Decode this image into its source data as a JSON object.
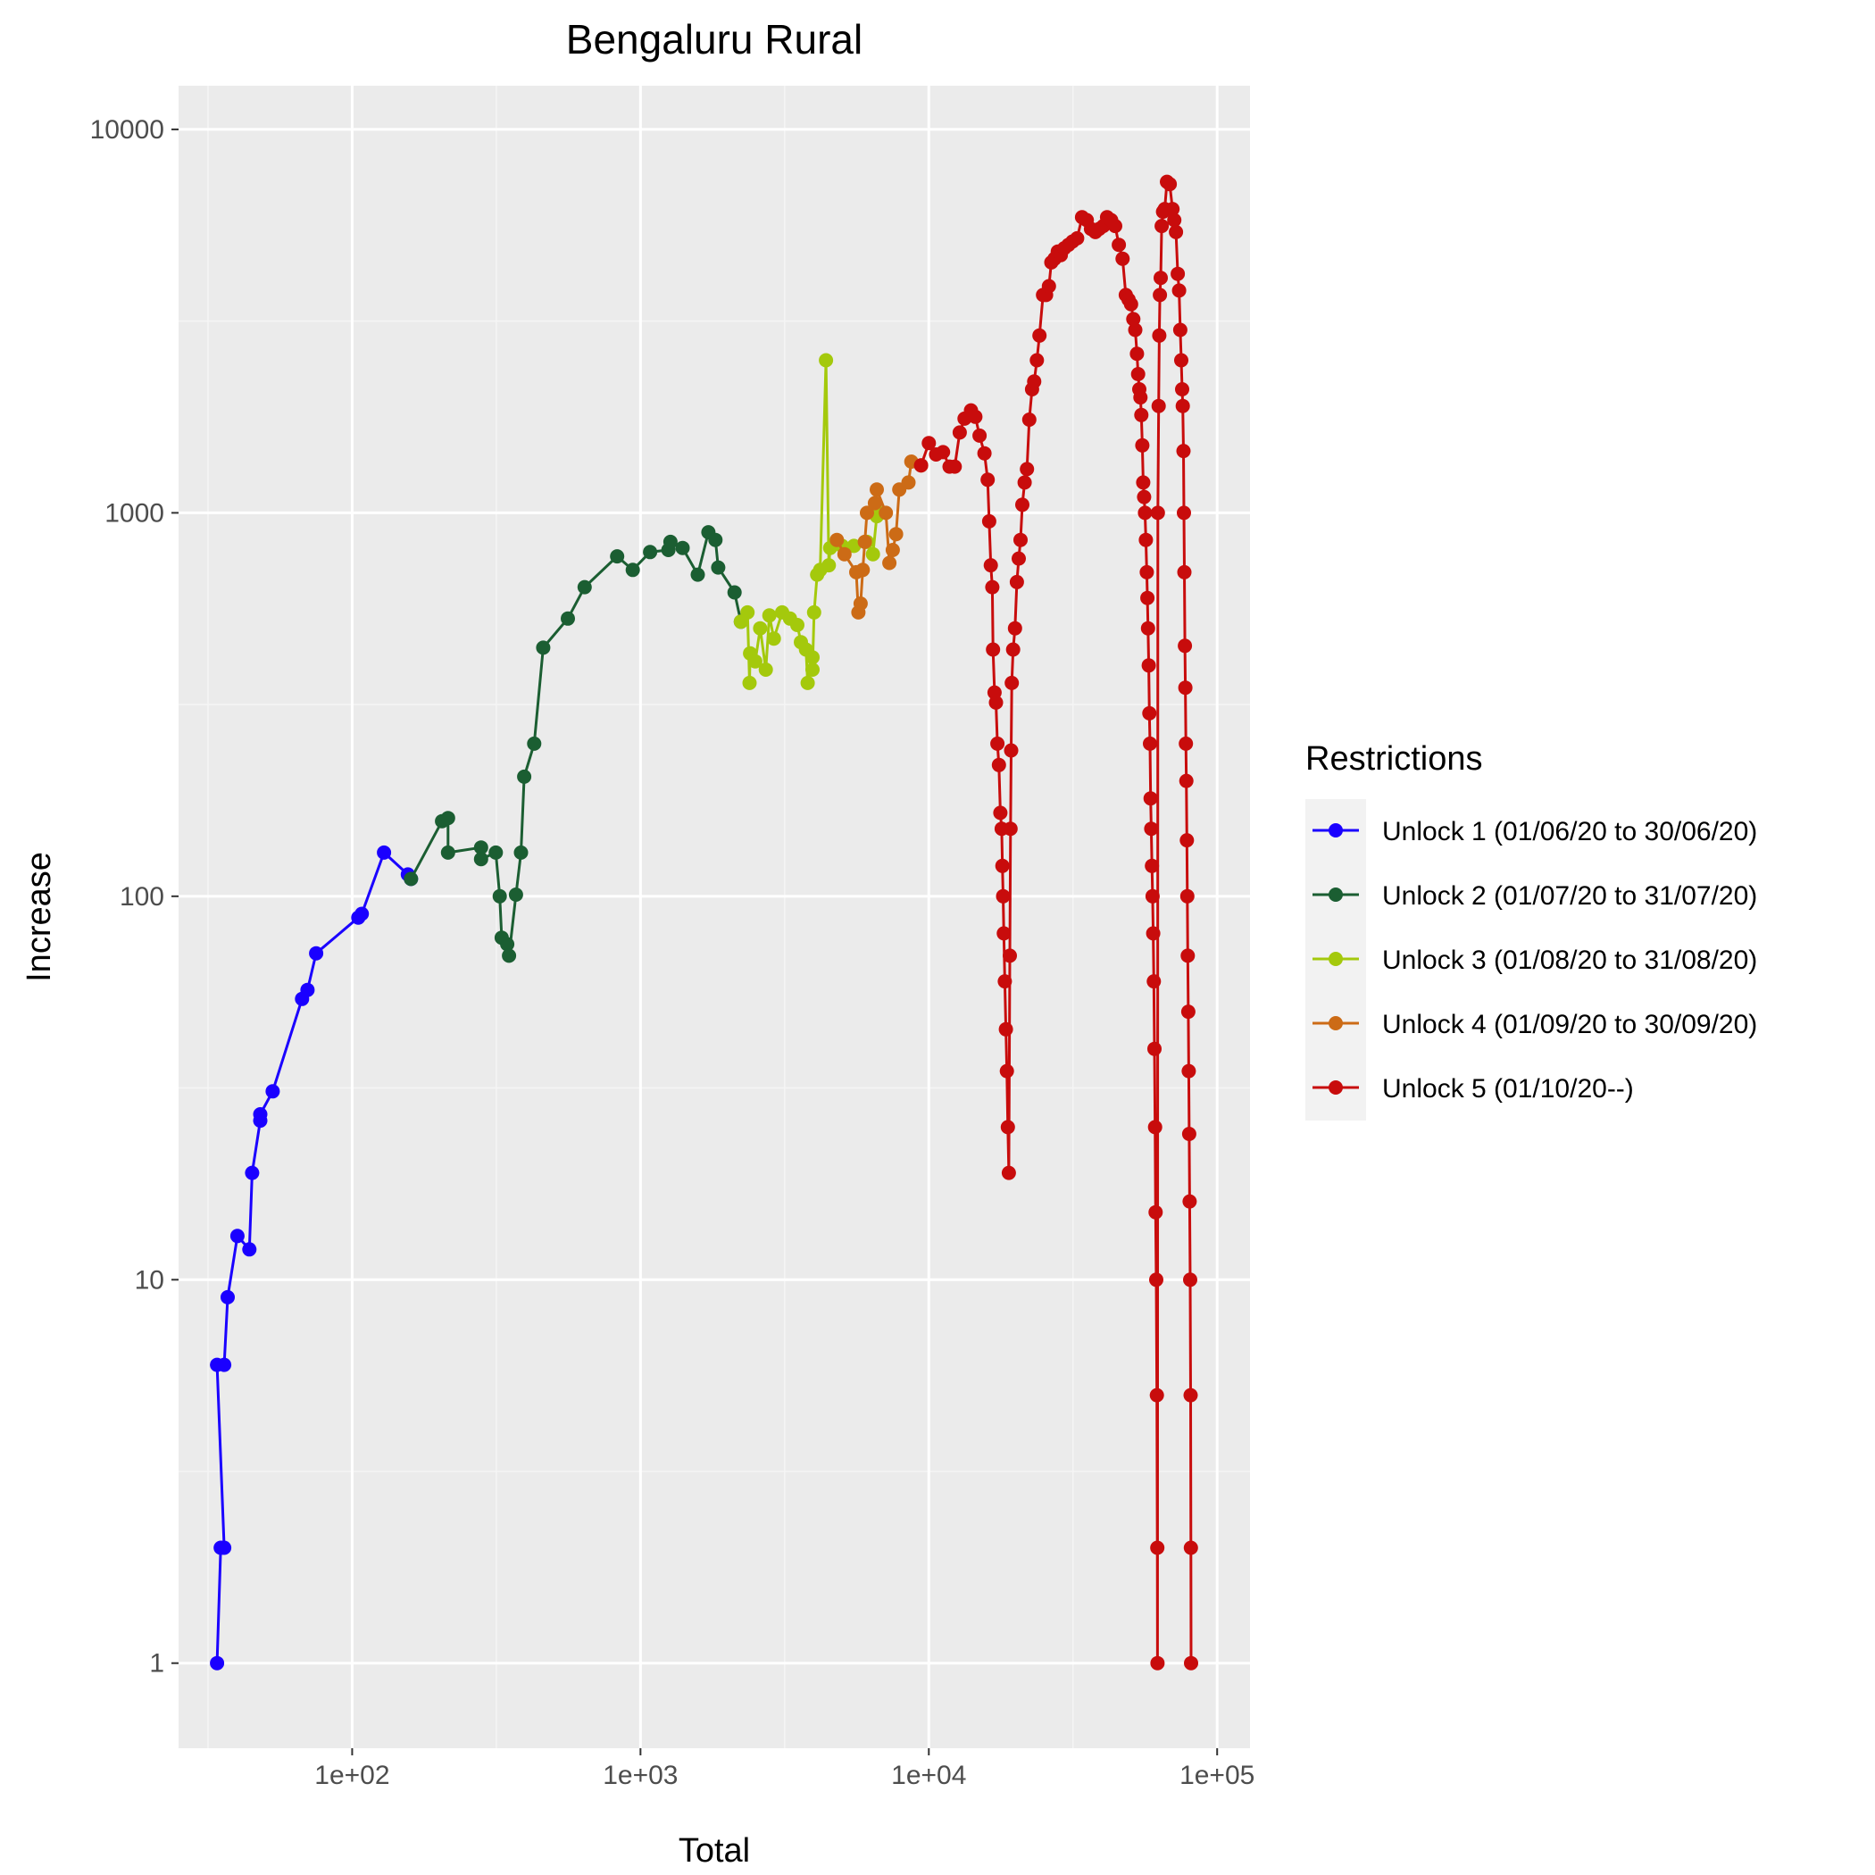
{
  "chart_data": {
    "type": "line",
    "title": "Bengaluru Rural",
    "xlabel": "Total",
    "ylabel": "Increase",
    "x_scale": "log10",
    "y_scale": "log10",
    "xlim": [
      25,
      130000
    ],
    "ylim": [
      0.6,
      13000
    ],
    "x_ticks": [
      100,
      1000,
      10000,
      100000
    ],
    "x_tick_labels": [
      "1e+02",
      "1e+03",
      "1e+04",
      "1e+05"
    ],
    "y_ticks": [
      1,
      10,
      100,
      1000,
      10000
    ],
    "y_tick_labels": [
      "1",
      "10",
      "100",
      "1000",
      "10000"
    ],
    "grid": true,
    "legend": {
      "title": "Restrictions",
      "placement": "right"
    },
    "series": [
      {
        "name": "Unlock 1 (01/06/20 to 30/06/20)",
        "color": "#1a00ff",
        "points": [
          [
            34,
            1
          ],
          [
            35,
            2
          ],
          [
            36,
            2
          ],
          [
            34,
            6
          ],
          [
            36,
            6
          ],
          [
            37,
            9
          ],
          [
            40,
            13
          ],
          [
            44,
            12
          ],
          [
            45,
            19
          ],
          [
            48,
            26
          ],
          [
            48,
            27
          ],
          [
            53,
            31
          ],
          [
            67,
            54
          ],
          [
            70,
            57
          ],
          [
            75,
            71
          ],
          [
            105,
            88
          ],
          [
            108,
            90
          ],
          [
            129,
            130
          ],
          [
            156,
            114
          ],
          [
            160,
            111
          ]
        ]
      },
      {
        "name": "Unlock 2 (01/07/20 to 31/07/20)",
        "color": "#1b5e32",
        "points": [
          [
            160,
            111
          ],
          [
            205,
            157
          ],
          [
            215,
            160
          ],
          [
            215,
            130
          ],
          [
            280,
            134
          ],
          [
            280,
            125
          ],
          [
            315,
            130
          ],
          [
            325,
            100
          ],
          [
            330,
            78
          ],
          [
            345,
            75
          ],
          [
            350,
            70
          ],
          [
            370,
            101
          ],
          [
            385,
            130
          ],
          [
            395,
            205
          ],
          [
            428,
            250
          ],
          [
            460,
            445
          ],
          [
            560,
            530
          ],
          [
            640,
            640
          ],
          [
            830,
            770
          ],
          [
            940,
            710
          ],
          [
            1080,
            790
          ],
          [
            1250,
            800
          ],
          [
            1270,
            840
          ],
          [
            1400,
            810
          ],
          [
            1580,
            690
          ],
          [
            1720,
            890
          ],
          [
            1820,
            850
          ],
          [
            1860,
            720
          ],
          [
            2120,
            620
          ],
          [
            2230,
            520
          ]
        ]
      },
      {
        "name": "Unlock 3 (01/08/20 to 31/08/20)",
        "color": "#a4c90c",
        "points": [
          [
            2230,
            520
          ],
          [
            2350,
            550
          ],
          [
            2390,
            360
          ],
          [
            2400,
            430
          ],
          [
            2500,
            410
          ],
          [
            2600,
            500
          ],
          [
            2720,
            390
          ],
          [
            2800,
            540
          ],
          [
            2900,
            470
          ],
          [
            3100,
            550
          ],
          [
            3300,
            530
          ],
          [
            3500,
            510
          ],
          [
            3600,
            460
          ],
          [
            3750,
            440
          ],
          [
            3800,
            360
          ],
          [
            3950,
            420
          ],
          [
            3950,
            390
          ],
          [
            4000,
            550
          ],
          [
            4100,
            690
          ],
          [
            4200,
            710
          ],
          [
            4400,
            2500
          ],
          [
            4500,
            730
          ],
          [
            4550,
            810
          ],
          [
            5000,
            820
          ],
          [
            5500,
            820
          ],
          [
            6100,
            840
          ],
          [
            6400,
            780
          ],
          [
            6600,
            980
          ],
          [
            6600,
            1010
          ]
        ]
      },
      {
        "name": "Unlock 4 (01/09/20 to 30/09/20)",
        "color": "#cc6b16",
        "points": [
          [
            4800,
            850
          ],
          [
            5100,
            780
          ],
          [
            5600,
            700
          ],
          [
            5700,
            550
          ],
          [
            5800,
            580
          ],
          [
            5900,
            710
          ],
          [
            6000,
            840
          ],
          [
            6100,
            1000
          ],
          [
            6500,
            1060
          ],
          [
            6600,
            1150
          ],
          [
            7100,
            1000
          ],
          [
            7300,
            740
          ],
          [
            7500,
            800
          ],
          [
            7700,
            880
          ],
          [
            7900,
            1150
          ],
          [
            8500,
            1200
          ],
          [
            8700,
            1360
          ],
          [
            9400,
            1330
          ]
        ]
      },
      {
        "name": "Unlock 5 (01/10/20--)",
        "color": "#c80c0c",
        "points": [
          [
            9400,
            1330
          ],
          [
            10000,
            1520
          ],
          [
            10600,
            1420
          ],
          [
            11200,
            1440
          ],
          [
            11800,
            1320
          ],
          [
            12300,
            1320
          ],
          [
            12800,
            1620
          ],
          [
            13300,
            1760
          ],
          [
            14000,
            1850
          ],
          [
            14500,
            1780
          ],
          [
            15000,
            1590
          ],
          [
            15600,
            1430
          ],
          [
            16000,
            1220
          ],
          [
            16200,
            950
          ],
          [
            16400,
            730
          ],
          [
            16600,
            640
          ],
          [
            16700,
            440
          ],
          [
            16900,
            340
          ],
          [
            17100,
            320
          ],
          [
            17300,
            250
          ],
          [
            17500,
            220
          ],
          [
            17700,
            165
          ],
          [
            17900,
            150
          ],
          [
            18000,
            120
          ],
          [
            18100,
            100
          ],
          [
            18200,
            80
          ],
          [
            18350,
            60
          ],
          [
            18500,
            45
          ],
          [
            18650,
            35
          ],
          [
            18800,
            25
          ],
          [
            18950,
            19
          ],
          [
            19100,
            70
          ],
          [
            19200,
            150
          ],
          [
            19300,
            240
          ],
          [
            19400,
            360
          ],
          [
            19600,
            440
          ],
          [
            19900,
            500
          ],
          [
            20200,
            660
          ],
          [
            20500,
            760
          ],
          [
            20800,
            850
          ],
          [
            21100,
            1050
          ],
          [
            21500,
            1200
          ],
          [
            21900,
            1300
          ],
          [
            22300,
            1750
          ],
          [
            22800,
            2100
          ],
          [
            23200,
            2200
          ],
          [
            23700,
            2500
          ],
          [
            24200,
            2900
          ],
          [
            24900,
            3700
          ],
          [
            25500,
            3700
          ],
          [
            26100,
            3900
          ],
          [
            26600,
            4500
          ],
          [
            27300,
            4600
          ],
          [
            28000,
            4800
          ],
          [
            28700,
            4700
          ],
          [
            29500,
            4900
          ],
          [
            30500,
            5000
          ],
          [
            31500,
            5100
          ],
          [
            32700,
            5200
          ],
          [
            34000,
            5900
          ],
          [
            35300,
            5800
          ],
          [
            36500,
            5500
          ],
          [
            37800,
            5400
          ],
          [
            39000,
            5500
          ],
          [
            40300,
            5600
          ],
          [
            41500,
            5900
          ],
          [
            42900,
            5800
          ],
          [
            44300,
            5600
          ],
          [
            45600,
            5000
          ],
          [
            47000,
            4600
          ],
          [
            48200,
            3700
          ],
          [
            49300,
            3600
          ],
          [
            50300,
            3500
          ],
          [
            51200,
            3200
          ],
          [
            52000,
            3000
          ],
          [
            52700,
            2600
          ],
          [
            53200,
            2300
          ],
          [
            53700,
            2100
          ],
          [
            54200,
            2000
          ],
          [
            54600,
            1800
          ],
          [
            55000,
            1500
          ],
          [
            55400,
            1200
          ],
          [
            55800,
            1100
          ],
          [
            56200,
            1000
          ],
          [
            56600,
            850
          ],
          [
            57000,
            700
          ],
          [
            57300,
            600
          ],
          [
            57600,
            500
          ],
          [
            57900,
            400
          ],
          [
            58200,
            300
          ],
          [
            58500,
            250
          ],
          [
            58800,
            180
          ],
          [
            59100,
            150
          ],
          [
            59400,
            120
          ],
          [
            59700,
            100
          ],
          [
            60000,
            80
          ],
          [
            60300,
            60
          ],
          [
            60600,
            40
          ],
          [
            60900,
            25
          ],
          [
            61200,
            15
          ],
          [
            61500,
            10
          ],
          [
            61800,
            5
          ],
          [
            62000,
            2
          ],
          [
            62100,
            1
          ],
          [
            62300,
            1000
          ],
          [
            62700,
            1900
          ],
          [
            63000,
            2900
          ],
          [
            63300,
            3700
          ],
          [
            63700,
            4100
          ],
          [
            64200,
            5600
          ],
          [
            64900,
            6100
          ],
          [
            65800,
            6200
          ],
          [
            67000,
            7300
          ],
          [
            68500,
            7200
          ],
          [
            70000,
            6200
          ],
          [
            71000,
            5800
          ],
          [
            72000,
            5400
          ],
          [
            73000,
            4200
          ],
          [
            73800,
            3800
          ],
          [
            74500,
            3000
          ],
          [
            75100,
            2500
          ],
          [
            75600,
            2100
          ],
          [
            76000,
            1900
          ],
          [
            76400,
            1450
          ],
          [
            76700,
            1000
          ],
          [
            77000,
            700
          ],
          [
            77300,
            450
          ],
          [
            77600,
            350
          ],
          [
            77900,
            250
          ],
          [
            78200,
            200
          ],
          [
            78500,
            140
          ],
          [
            78800,
            100
          ],
          [
            79100,
            70
          ],
          [
            79400,
            50
          ],
          [
            79700,
            35
          ],
          [
            80000,
            24
          ],
          [
            80300,
            16
          ],
          [
            80600,
            10
          ],
          [
            80900,
            5
          ],
          [
            81100,
            2
          ],
          [
            81200,
            1
          ]
        ]
      }
    ]
  }
}
